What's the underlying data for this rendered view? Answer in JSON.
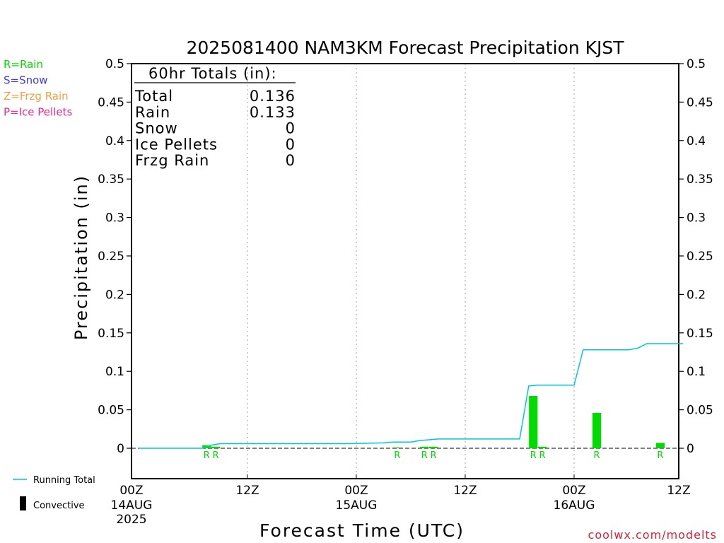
{
  "chart_data": {
    "type": "bar",
    "title": "2025081400 NAM3KM Forecast Precipitation KJST",
    "xlabel": "Forecast Time (UTC)",
    "ylabel": "Precipitation (in)",
    "ylim": [
      -0.04,
      0.5
    ],
    "xlim": [
      0,
      60
    ],
    "y_ticks": [
      "0",
      "0.05",
      "0.1",
      "0.15",
      "0.2",
      "0.25",
      "0.3",
      "0.35",
      "0.4",
      "0.45",
      "0.5"
    ],
    "y_tick_values": [
      0,
      0.05,
      0.1,
      0.15,
      0.2,
      0.25,
      0.3,
      0.35,
      0.4,
      0.45,
      0.5
    ],
    "x_ticks": [
      {
        "hour": 0,
        "label": "00Z",
        "date": "14AUG",
        "year": "2025"
      },
      {
        "hour": 12,
        "label": "12Z",
        "date": "",
        "year": ""
      },
      {
        "hour": 24,
        "label": "00Z",
        "date": "15AUG",
        "year": ""
      },
      {
        "hour": 36,
        "label": "12Z",
        "date": "",
        "year": ""
      },
      {
        "hour": 48,
        "label": "00Z",
        "date": "16AUG",
        "year": ""
      },
      {
        "hour": 60,
        "label": "12Z",
        "date": "",
        "year": ""
      }
    ],
    "grid": "dotted vertical lines at 12Z and 00Z",
    "series": [
      {
        "name": "Running Total",
        "kind": "line",
        "color": "#00c8d2",
        "points": [
          {
            "hour": 0,
            "value": 0
          },
          {
            "hour": 6,
            "value": 0
          },
          {
            "hour": 7,
            "value": 0
          },
          {
            "hour": 8,
            "value": 0.004
          },
          {
            "hour": 9,
            "value": 0.006
          },
          {
            "hour": 23,
            "value": 0.006
          },
          {
            "hour": 27,
            "value": 0.007
          },
          {
            "hour": 28,
            "value": 0.008
          },
          {
            "hour": 30,
            "value": 0.008
          },
          {
            "hour": 31,
            "value": 0.01
          },
          {
            "hour": 33,
            "value": 0.012
          },
          {
            "hour": 42,
            "value": 0.012
          },
          {
            "hour": 43,
            "value": 0.081
          },
          {
            "hour": 44,
            "value": 0.082
          },
          {
            "hour": 47,
            "value": 0.082
          },
          {
            "hour": 48,
            "value": 0.082
          },
          {
            "hour": 49,
            "value": 0.128
          },
          {
            "hour": 54,
            "value": 0.128
          },
          {
            "hour": 55,
            "value": 0.13
          },
          {
            "hour": 56,
            "value": 0.136
          },
          {
            "hour": 60,
            "value": 0.136
          }
        ]
      },
      {
        "name": "Rain",
        "kind": "bar",
        "color": "#00dc00",
        "bars": [
          {
            "hour": 7.5,
            "value": 0.004,
            "label": "R"
          },
          {
            "hour": 8.5,
            "value": 0.002,
            "label": "R"
          },
          {
            "hour": 28.5,
            "value": 0.001,
            "label": "R"
          },
          {
            "hour": 31.5,
            "value": 0.002,
            "label": "R"
          },
          {
            "hour": 32.5,
            "value": 0.002,
            "label": "R"
          },
          {
            "hour": 43.5,
            "value": 0.068,
            "label": "R"
          },
          {
            "hour": 44.5,
            "value": 0.002,
            "label": "R"
          },
          {
            "hour": 50.5,
            "value": 0.046,
            "label": "R"
          },
          {
            "hour": 57.5,
            "value": 0.007,
            "label": "R"
          }
        ]
      }
    ]
  },
  "totals": {
    "header": "60hr Totals (in):",
    "rows": [
      {
        "label": "Total",
        "value": "0.136"
      },
      {
        "label": "Rain",
        "value": "0.133"
      },
      {
        "label": "Snow",
        "value": "0"
      },
      {
        "label": "Ice Pellets",
        "value": "0"
      },
      {
        "label": "Frzg Rain",
        "value": "0"
      }
    ]
  },
  "legend_types": [
    {
      "text": "R=Rain",
      "color": "#00dc00"
    },
    {
      "text": "S=Snow",
      "color": "#3c3cf0"
    },
    {
      "text": "Z=Frzg Rain",
      "color": "#f0a03c"
    },
    {
      "text": "P=Ice Pellets",
      "color": "#f0288c"
    }
  ],
  "legend_bottom": {
    "running_total": "Running Total",
    "convective": "Convective"
  },
  "watermark": "coolwx.com/modelts",
  "colors": {
    "running_total": "#00c8d2",
    "rain": "#00dc00",
    "convective": "#000000",
    "watermark": "#dc1e3c",
    "axes": "#000000",
    "grid": "#a0a0a0"
  }
}
